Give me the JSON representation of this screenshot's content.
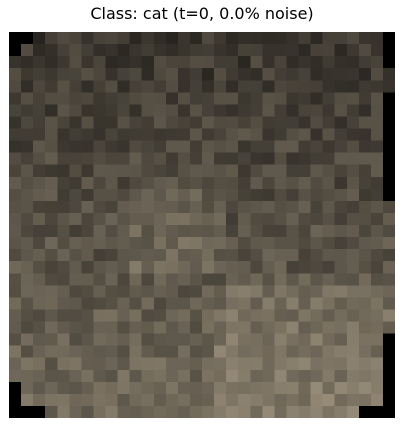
{
  "figure": {
    "title": "Class: cat (t=0, 0.0% noise)"
  },
  "image": {
    "description_icon": "pixelated-noise-image",
    "palette": {
      "background": "#000000",
      "dark": "#2f2f2b",
      "mid_dark": "#4b473f",
      "mid": "#625a4e",
      "light": "#8a7a69",
      "highlight": "#a89580"
    }
  }
}
